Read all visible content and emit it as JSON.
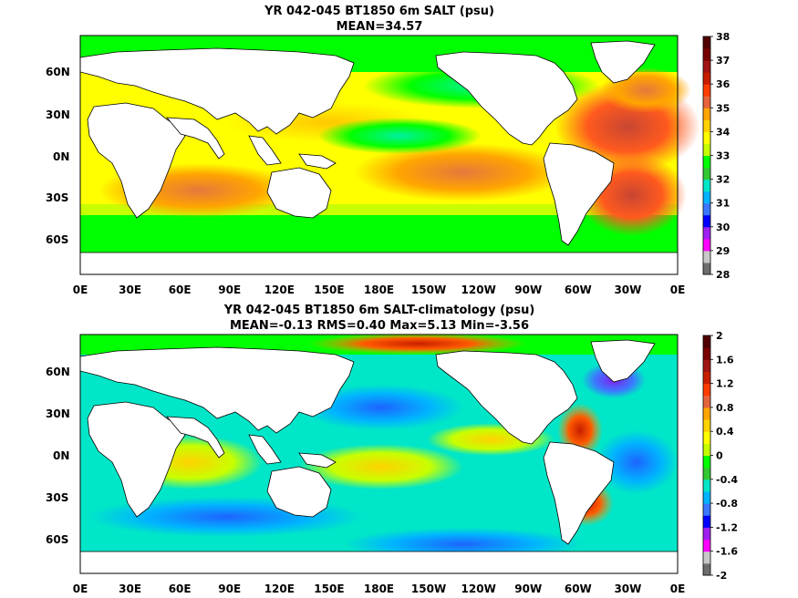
{
  "chart_data": [
    {
      "type": "heatmap",
      "title": "YR 042-045 BT1850 6m SALT (psu)",
      "subtitle": "MEAN=34.57",
      "x_ticks": [
        "0E",
        "30E",
        "60E",
        "90E",
        "120E",
        "150E",
        "180E",
        "150W",
        "120W",
        "90W",
        "60W",
        "30W",
        "0E"
      ],
      "y_ticks": [
        "60N",
        "30N",
        "0N",
        "30S",
        "60S"
      ],
      "colorbar": {
        "levels": [
          "28",
          "29",
          "30",
          "31",
          "32",
          "33",
          "34",
          "35",
          "36",
          "37",
          "38"
        ],
        "colors": [
          "#6e6e6e",
          "#c8c8c8",
          "#ff00ff",
          "#a020f0",
          "#0000ff",
          "#3c78ff",
          "#00b4ff",
          "#00e6c8",
          "#32c832",
          "#00ff00",
          "#c8ff00",
          "#ffff00",
          "#ffd200",
          "#ffa500",
          "#e6643c",
          "#ff3c00",
          "#c81e00",
          "#a01414",
          "#780000",
          "#500000"
        ]
      }
    },
    {
      "type": "heatmap",
      "title": "YR 042-045 BT1850 6m SALT-climatology (psu)",
      "subtitle": "MEAN=-0.13   RMS=0.40   Max=5.13   Min=-3.56",
      "x_ticks": [
        "0E",
        "30E",
        "60E",
        "90E",
        "120E",
        "150E",
        "180E",
        "150W",
        "120W",
        "90W",
        "60W",
        "30W",
        "0E"
      ],
      "y_ticks": [
        "60N",
        "30N",
        "0N",
        "30S",
        "60S"
      ],
      "colorbar": {
        "levels": [
          "-2",
          "-1.6",
          "-1.2",
          "-0.8",
          "-0.4",
          "0",
          "0.4",
          "0.8",
          "1.2",
          "1.6",
          "2"
        ],
        "colors": [
          "#6e6e6e",
          "#c8c8c8",
          "#ff00ff",
          "#a020f0",
          "#0000ff",
          "#3c78ff",
          "#00b4ff",
          "#00e6c8",
          "#32c832",
          "#00ff00",
          "#c8ff00",
          "#ffff00",
          "#ffd200",
          "#ffa500",
          "#e6643c",
          "#ff3c00",
          "#c81e00",
          "#a01414",
          "#780000",
          "#500000"
        ]
      }
    }
  ]
}
